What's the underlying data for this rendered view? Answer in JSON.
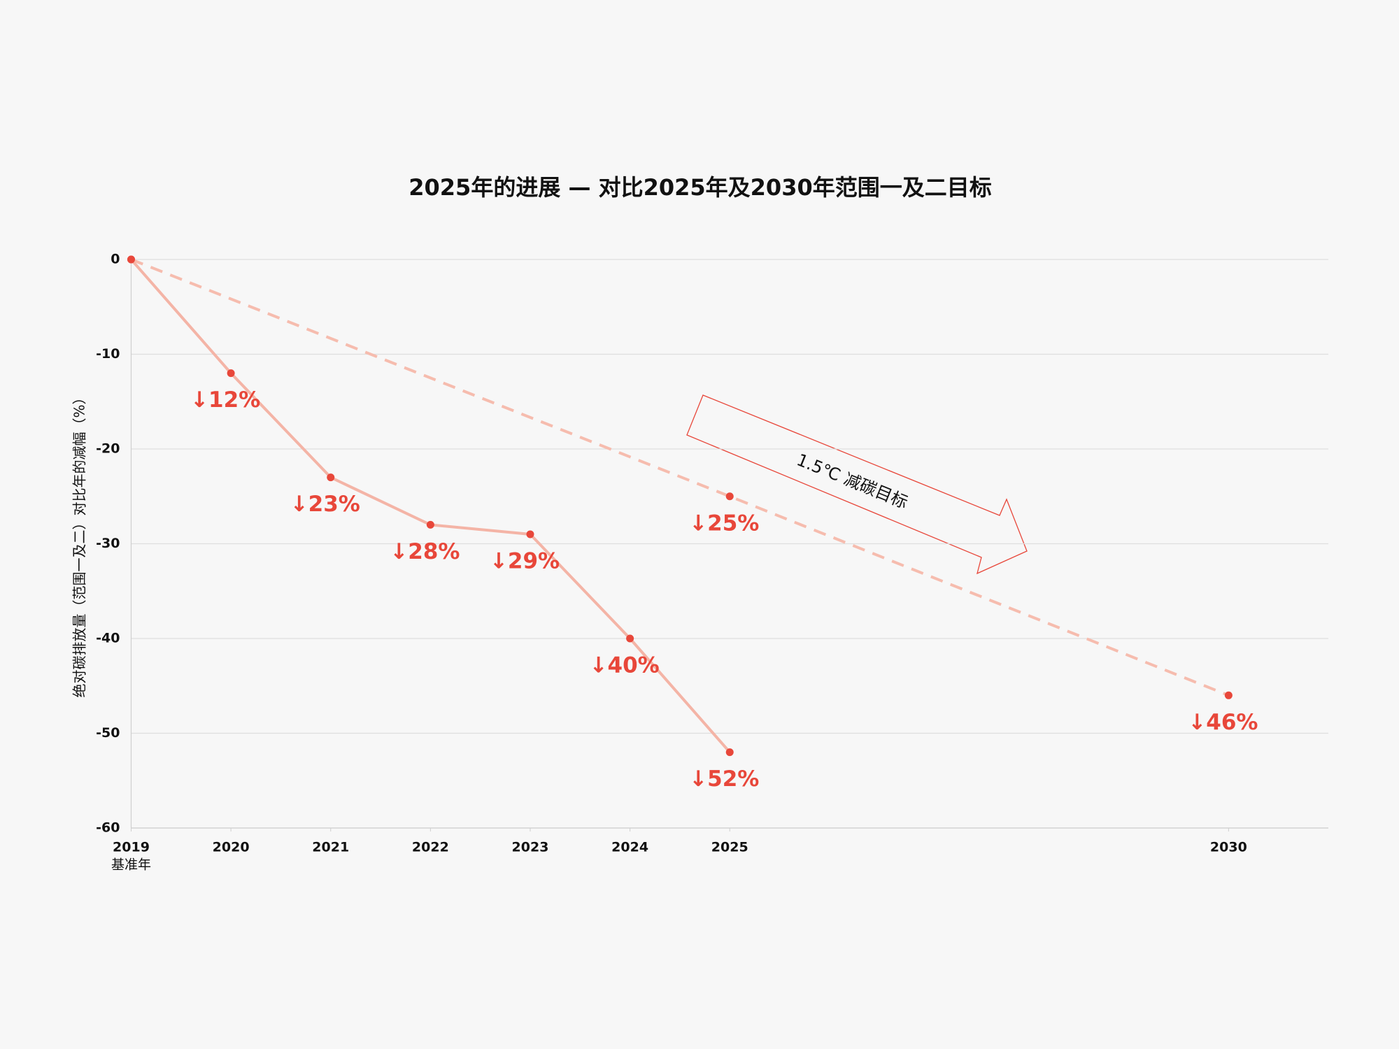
{
  "chart_data": {
    "type": "line",
    "title": "2025年的进展 — 对比2025年及2030年范围一及二目标",
    "y_label": "绝对碳排放量（范围一及二）对比年的减幅（%）",
    "xlim": [
      2019,
      2031
    ],
    "xticks": [
      2019,
      2020,
      2021,
      2022,
      2023,
      2024,
      2025,
      2030
    ],
    "ylim": [
      -60,
      0
    ],
    "yticks": [
      0,
      -10,
      -20,
      -30,
      -40,
      -50,
      -60
    ],
    "grid": true,
    "series": [
      {
        "x": [
          2019,
          2020,
          2021,
          2022,
          2023,
          2024,
          2025
        ],
        "values": [
          0,
          -12,
          -23,
          -28,
          -29,
          -40,
          -52
        ],
        "value_labels": [
          null,
          "↓12%",
          "↓23%",
          "↓28%",
          "↓29%",
          "↓40%",
          "↓52%"
        ],
        "color": "#f4b4a6",
        "marker_color": "#e8473a",
        "dashed": false
      },
      {
        "x": [
          2019,
          2025,
          2030
        ],
        "values": [
          0,
          -25,
          -46
        ],
        "value_labels": [
          null,
          "↓25%",
          "↓46%"
        ],
        "color": "#f6bcae",
        "marker_color": "#e8473a",
        "dashed": true
      }
    ],
    "annotations": [
      {
        "text": "基准年",
        "x": 2019
      },
      {
        "text": "1.5℃ 减碳目标"
      }
    ]
  }
}
